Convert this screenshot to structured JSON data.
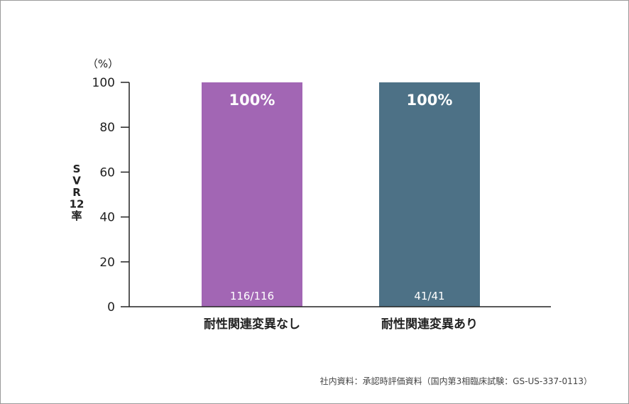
{
  "chart_data": {
    "type": "bar",
    "categories": [
      "耐性関連変異なし",
      "耐性関連変異あり"
    ],
    "values": [
      100,
      100
    ],
    "value_labels": [
      "100%",
      "100%"
    ],
    "count_labels": [
      "116/116",
      "41/41"
    ],
    "bar_colors": [
      "#a266b4",
      "#4d7186"
    ],
    "ylabel": [
      "S",
      "V",
      "R",
      "12",
      "率"
    ],
    "yunit": "（%）",
    "ylim": [
      0,
      100
    ],
    "yticks": [
      0,
      20,
      40,
      60,
      80,
      100
    ],
    "grid": false
  },
  "footer": {
    "source": "社内資料：承認時評価資料（国内第3相臨床試験：GS-US-337-0113）"
  }
}
